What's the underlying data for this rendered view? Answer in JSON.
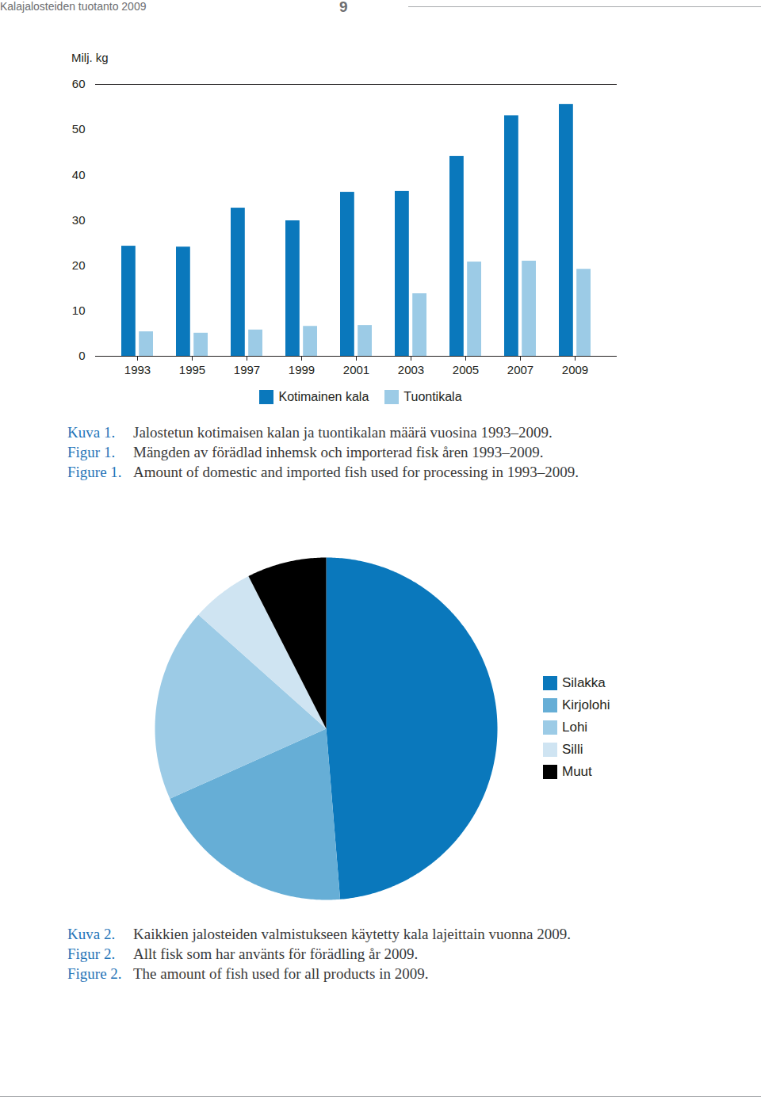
{
  "header": {
    "title": "Kalajalosteiden tuotanto 2009",
    "page": 9
  },
  "chart_data": [
    {
      "type": "bar",
      "ylabel": "Milj. kg",
      "categories": [
        "1993",
        "1995",
        "1997",
        "1999",
        "2001",
        "2003",
        "2005",
        "2007",
        "2009"
      ],
      "series": [
        {
          "name": "Kotimainen kala",
          "color": "#0a78bc",
          "values": [
            24.3,
            24.1,
            32.7,
            29.9,
            36.2,
            36.4,
            44.1,
            53.1,
            55.6
          ]
        },
        {
          "name": "Tuontikala",
          "color": "#9ccbe6",
          "values": [
            5.4,
            5.1,
            5.8,
            6.6,
            6.8,
            13.8,
            20.8,
            21.0,
            19.2
          ]
        }
      ],
      "ylim": [
        0,
        60
      ],
      "yticks": [
        0,
        10,
        20,
        30,
        40,
        50,
        60
      ],
      "grid": false,
      "legend": "bottom",
      "caption": [
        {
          "label": "Kuva 1.",
          "text": "Jalostetun kotimaisen kalan ja tuontikalan määrä vuosina 1993–2009."
        },
        {
          "label": "Figur 1.",
          "text": "Mängden av förädlad inhemsk och importerad fisk åren 1993–2009."
        },
        {
          "label": "Figure 1.",
          "text": "Amount of domestic and imported fish used for processing in 1993–2009."
        }
      ]
    },
    {
      "type": "pie",
      "categories": [
        "Silakka",
        "Kirjolohi",
        "Lohi",
        "Silli",
        "Muut"
      ],
      "values": [
        48.7,
        19.6,
        18.3,
        5.9,
        7.5
      ],
      "colors": [
        "#0a78bc",
        "#66aed6",
        "#9ccbe6",
        "#cfe4f2",
        "#000000"
      ],
      "legend": "right",
      "caption": [
        {
          "label": "Kuva 2.",
          "text": "Kaikkien jalosteiden valmistukseen käytetty kala lajeittain vuonna 2009."
        },
        {
          "label": "Figur 2.",
          "text": "Allt fisk som har använts för förädling år 2009."
        },
        {
          "label": "Figure 2.",
          "text": "The amount of fish used for all products in 2009."
        }
      ]
    }
  ]
}
